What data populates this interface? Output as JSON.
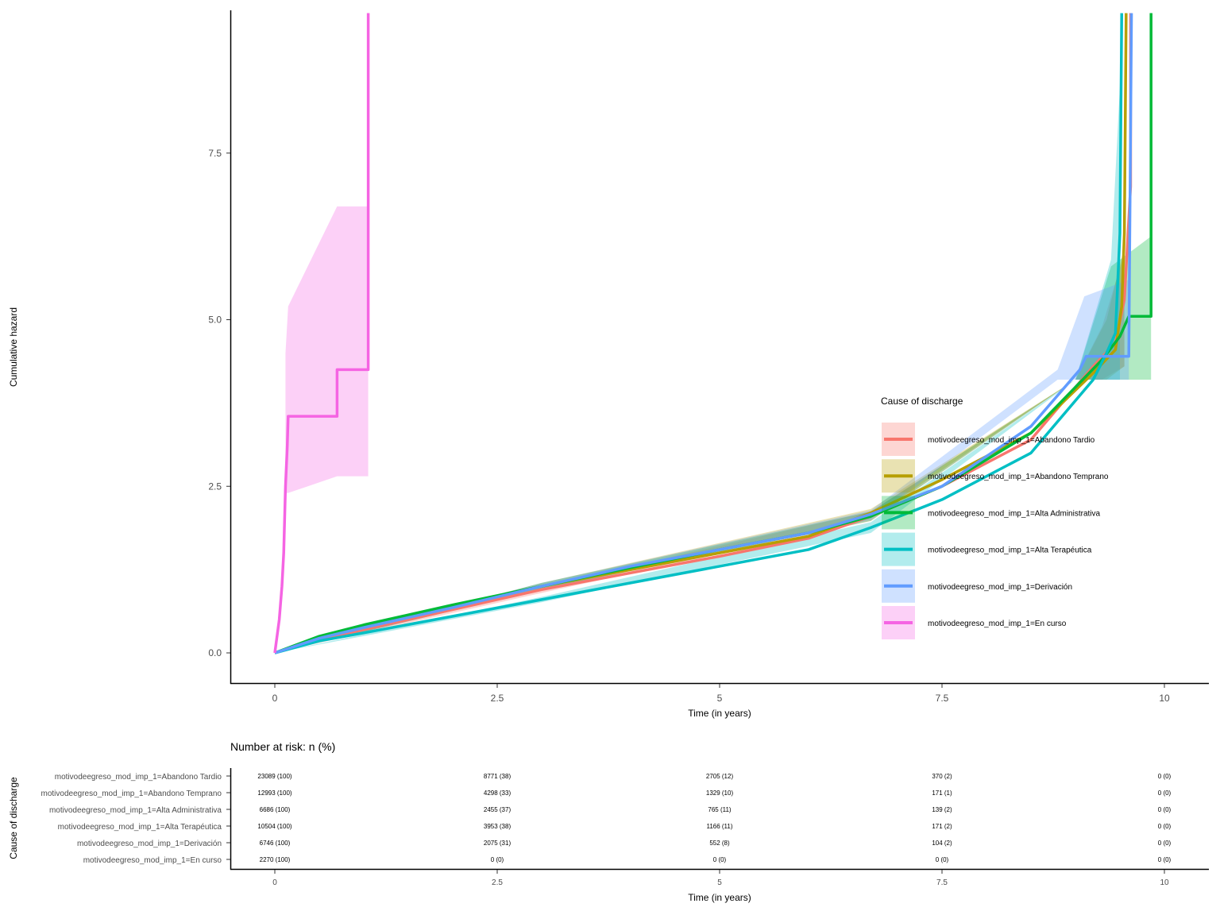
{
  "chart_data": [
    {
      "type": "line",
      "subtype": "step",
      "title": "",
      "xlabel": "Time (in years)",
      "ylabel": "Cumulative hazard",
      "xlim": [
        -0.5,
        10.5
      ],
      "ylim": [
        -0.45,
        9.6
      ],
      "xticks": [
        0,
        2.5,
        5,
        7.5,
        10
      ],
      "xtick_labels": [
        "0",
        "2.5",
        "5",
        "7.5",
        "10"
      ],
      "yticks": [
        0,
        2.5,
        5,
        7.5
      ],
      "ytick_labels": [
        "0.0",
        "2.5",
        "5.0",
        "7.5"
      ],
      "grid": false,
      "legend": {
        "title": "Cause of discharge",
        "placement": "right, inside plot"
      },
      "series": [
        {
          "name": "motivodeegreso_mod_imp_1=Abandono Tardio",
          "color": "#F8766D",
          "points": [
            [
              0,
              0
            ],
            [
              0.5,
              0.2
            ],
            [
              1,
              0.35
            ],
            [
              2,
              0.65
            ],
            [
              3,
              0.95
            ],
            [
              4,
              1.2
            ],
            [
              5,
              1.45
            ],
            [
              6,
              1.72
            ],
            [
              6.7,
              2.05
            ],
            [
              7.5,
              2.5
            ],
            [
              8.5,
              3.2
            ],
            [
              9.2,
              4.3
            ],
            [
              9.45,
              4.65
            ],
            [
              9.55,
              5.3
            ],
            [
              9.62,
              7.0
            ],
            [
              9.62,
              9.6
            ]
          ],
          "band": [
            [
              0,
              0,
              0
            ],
            [
              3,
              0.9,
              1.0
            ],
            [
              6.7,
              1.98,
              2.12
            ],
            [
              9.0,
              4.1,
              4.1
            ],
            [
              9.3,
              4.1,
              4.9
            ],
            [
              9.55,
              4.3,
              6.0
            ]
          ]
        },
        {
          "name": "motivodeegreso_mod_imp_1=Abandono Temprano",
          "color": "#B79F00",
          "points": [
            [
              0,
              0
            ],
            [
              0.5,
              0.22
            ],
            [
              1,
              0.4
            ],
            [
              2,
              0.7
            ],
            [
              3,
              1.0
            ],
            [
              4,
              1.25
            ],
            [
              5,
              1.5
            ],
            [
              6,
              1.75
            ],
            [
              6.7,
              2.1
            ],
            [
              7.5,
              2.6
            ],
            [
              8.5,
              3.3
            ],
            [
              9.2,
              4.2
            ],
            [
              9.45,
              4.55
            ],
            [
              9.52,
              5.2
            ],
            [
              9.55,
              6.3
            ],
            [
              9.57,
              9.6
            ]
          ],
          "band": [
            [
              0,
              0,
              0
            ],
            [
              3,
              0.95,
              1.05
            ],
            [
              6.7,
              2.02,
              2.16
            ],
            [
              9.0,
              4.1,
              4.1
            ],
            [
              9.35,
              4.1,
              5.0
            ],
            [
              9.55,
              4.3,
              6.1
            ]
          ]
        },
        {
          "name": "motivodeegreso_mod_imp_1=Alta Administrativa",
          "color": "#00BA38",
          "points": [
            [
              0,
              0
            ],
            [
              0.5,
              0.25
            ],
            [
              1,
              0.42
            ],
            [
              2,
              0.72
            ],
            [
              3,
              1.0
            ],
            [
              4,
              1.28
            ],
            [
              5,
              1.55
            ],
            [
              6,
              1.8
            ],
            [
              6.7,
              2.05
            ],
            [
              7.5,
              2.5
            ],
            [
              8.5,
              3.3
            ],
            [
              9.3,
              4.4
            ],
            [
              9.5,
              4.75
            ],
            [
              9.6,
              5.05
            ],
            [
              9.85,
              5.05
            ],
            [
              9.85,
              9.6
            ]
          ],
          "band": [
            [
              0,
              0,
              0
            ],
            [
              3,
              0.95,
              1.05
            ],
            [
              6.7,
              1.98,
              2.12
            ],
            [
              9.0,
              4.1,
              4.1
            ],
            [
              9.4,
              4.1,
              5.8
            ],
            [
              9.85,
              4.1,
              6.25
            ]
          ]
        },
        {
          "name": "motivodeegreso_mod_imp_1=Alta Terapéutica",
          "color": "#00BFC4",
          "points": [
            [
              0,
              0
            ],
            [
              0.5,
              0.18
            ],
            [
              1,
              0.3
            ],
            [
              2,
              0.55
            ],
            [
              3,
              0.8
            ],
            [
              4,
              1.05
            ],
            [
              5,
              1.3
            ],
            [
              6,
              1.55
            ],
            [
              6.7,
              1.88
            ],
            [
              7.5,
              2.3
            ],
            [
              8.5,
              3.0
            ],
            [
              9.2,
              4.1
            ],
            [
              9.35,
              4.5
            ],
            [
              9.45,
              4.8
            ],
            [
              9.5,
              6.3
            ],
            [
              9.52,
              9.6
            ]
          ],
          "band": [
            [
              0,
              0,
              0
            ],
            [
              3,
              0.76,
              0.84
            ],
            [
              6.7,
              1.8,
              1.96
            ],
            [
              9.0,
              4.1,
              4.1
            ],
            [
              9.4,
              4.1,
              5.9
            ],
            [
              9.5,
              4.1,
              8.5
            ]
          ]
        },
        {
          "name": "motivodeegreso_mod_imp_1=Derivación",
          "color": "#619CFF",
          "points": [
            [
              0,
              0
            ],
            [
              0.5,
              0.22
            ],
            [
              1,
              0.38
            ],
            [
              2,
              0.68
            ],
            [
              3,
              1.0
            ],
            [
              4,
              1.3
            ],
            [
              5,
              1.55
            ],
            [
              6,
              1.8
            ],
            [
              6.7,
              2.08
            ],
            [
              7.5,
              2.5
            ],
            [
              8.5,
              3.4
            ],
            [
              9.05,
              4.25
            ],
            [
              9.12,
              4.45
            ],
            [
              9.45,
              4.45
            ],
            [
              9.6,
              4.45
            ],
            [
              9.63,
              9.6
            ]
          ],
          "band": [
            [
              0,
              0,
              0
            ],
            [
              3,
              0.95,
              1.05
            ],
            [
              6.7,
              2.0,
              2.14
            ],
            [
              8.8,
              4.1,
              4.25
            ],
            [
              9.1,
              4.1,
              5.35
            ],
            [
              9.6,
              4.1,
              5.6
            ]
          ]
        },
        {
          "name": "motivodeegreso_mod_imp_1=En curso",
          "color": "#F564E3",
          "points": [
            [
              0,
              0
            ],
            [
              0.05,
              0.5
            ],
            [
              0.08,
              1.0
            ],
            [
              0.1,
              1.5
            ],
            [
              0.12,
              2.5
            ],
            [
              0.14,
              3.1
            ],
            [
              0.15,
              3.55
            ],
            [
              0.7,
              3.55
            ],
            [
              0.7,
              4.25
            ],
            [
              1.05,
              4.25
            ],
            [
              1.05,
              9.6
            ]
          ],
          "band": [
            [
              0.12,
              2.4,
              4.5
            ],
            [
              0.15,
              2.4,
              5.2
            ],
            [
              0.7,
              2.65,
              6.7
            ],
            [
              1.05,
              2.65,
              6.7
            ]
          ]
        }
      ]
    },
    {
      "type": "table",
      "title": "Number at risk: n (%)",
      "xlabel": "Time (in years)",
      "ylabel": "Cause of discharge",
      "xticks": [
        0,
        2.5,
        5,
        7.5,
        10
      ],
      "xtick_labels": [
        "0",
        "2.5",
        "5",
        "7.5",
        "10"
      ],
      "rows": [
        {
          "label": "motivodeegreso_mod_imp_1=Abandono Tardio",
          "values": [
            "23089 (100)",
            "8771 (38)",
            "2705 (12)",
            "370 (2)",
            "0 (0)"
          ]
        },
        {
          "label": "motivodeegreso_mod_imp_1=Abandono Temprano",
          "values": [
            "12993 (100)",
            "4298 (33)",
            "1329 (10)",
            "171 (1)",
            "0 (0)"
          ]
        },
        {
          "label": "motivodeegreso_mod_imp_1=Alta Administrativa",
          "values": [
            "6686 (100)",
            "2455 (37)",
            "765 (11)",
            "139 (2)",
            "0 (0)"
          ]
        },
        {
          "label": "motivodeegreso_mod_imp_1=Alta Terapéutica",
          "values": [
            "10504 (100)",
            "3953 (38)",
            "1166 (11)",
            "171 (2)",
            "0 (0)"
          ]
        },
        {
          "label": "motivodeegreso_mod_imp_1=Derivación",
          "values": [
            "6746 (100)",
            "2075 (31)",
            "552 (8)",
            "104 (2)",
            "0 (0)"
          ]
        },
        {
          "label": "motivodeegreso_mod_imp_1=En curso",
          "values": [
            "2270 (100)",
            "0 (0)",
            "0 (0)",
            "0 (0)",
            "0 (0)"
          ]
        }
      ]
    }
  ]
}
